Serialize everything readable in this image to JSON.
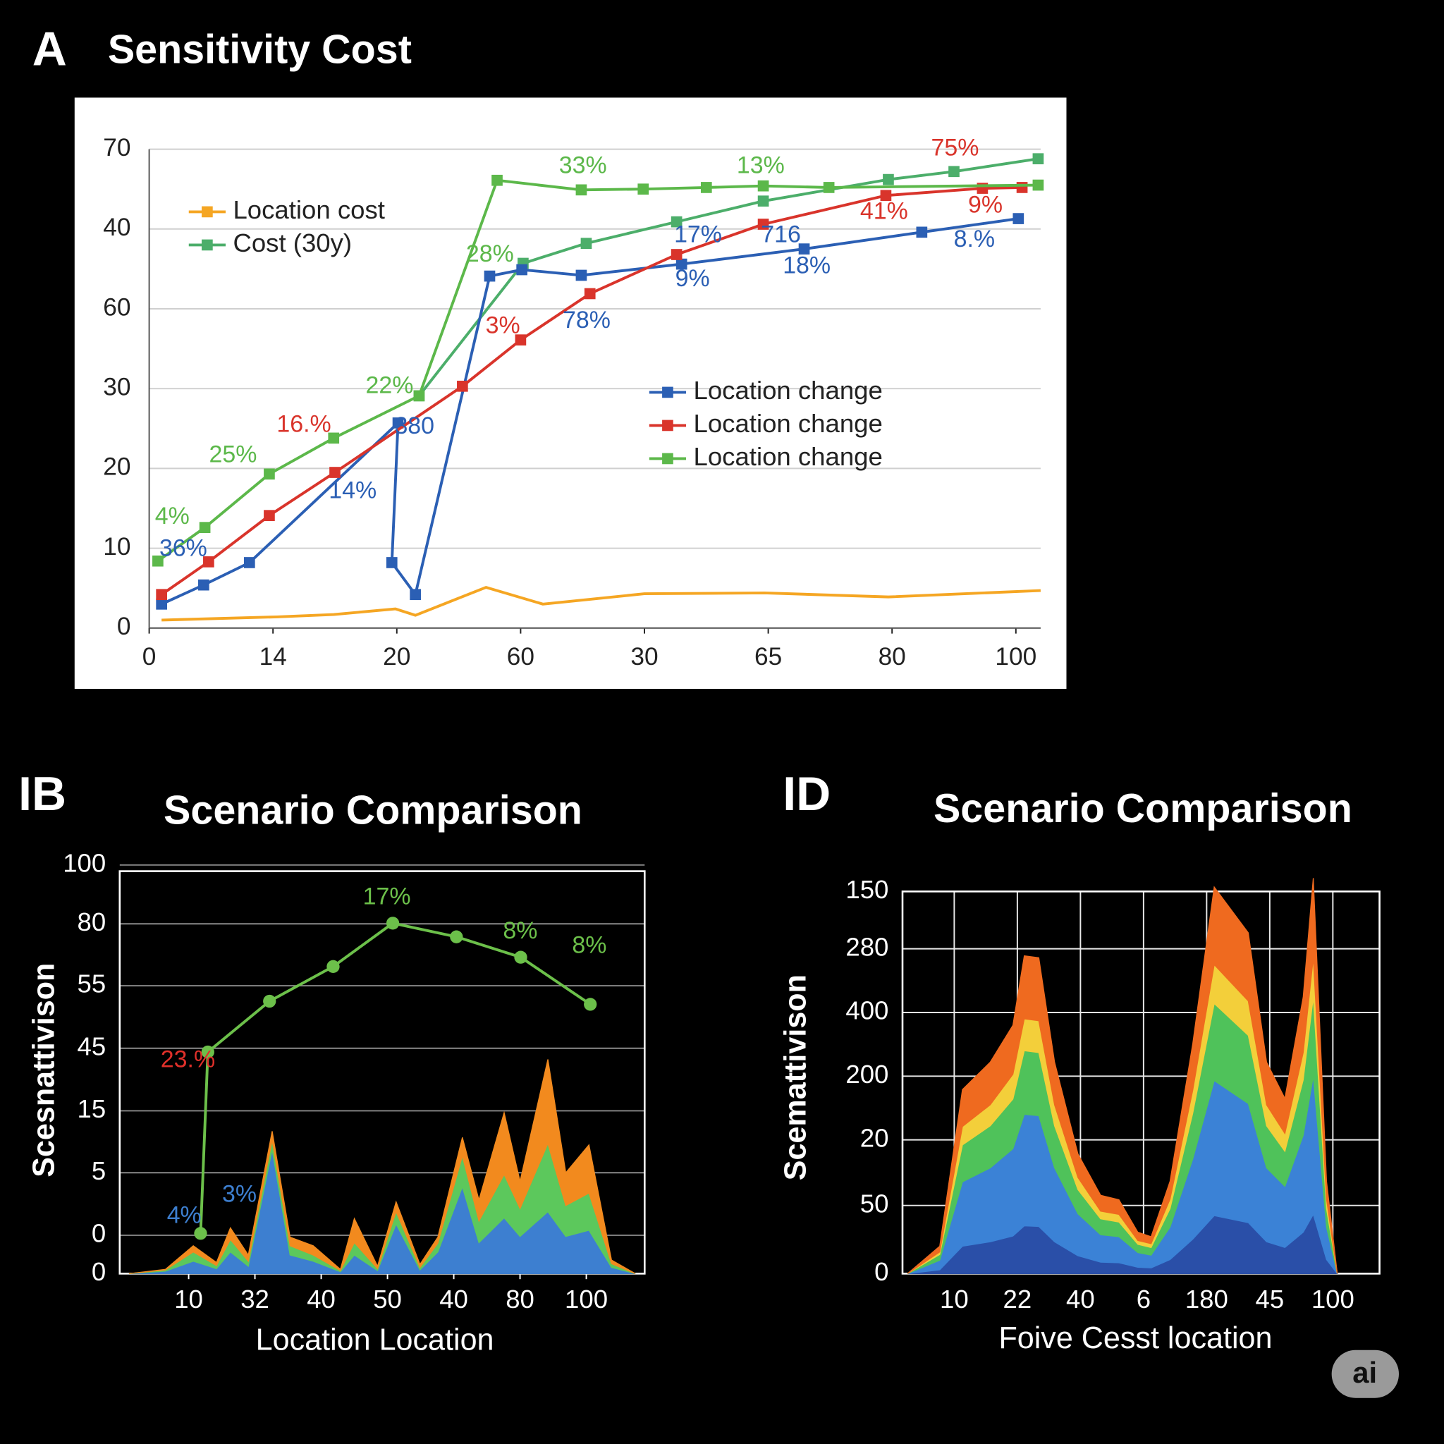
{
  "chart_data": [
    {
      "type": "line",
      "panel_label": "A",
      "title": "Sensitivity Cost",
      "background": "#ffffff",
      "grid": true,
      "xlim": [
        0,
        7.2
      ],
      "ylim": [
        0,
        6
      ],
      "xticks": [
        0,
        {
          "value": 1,
          "label": "14"
        },
        {
          "value": 2,
          "label": "20"
        },
        {
          "value": 3,
          "label": "60"
        },
        {
          "value": 4,
          "label": "30"
        },
        {
          "value": 5,
          "label": "65"
        },
        {
          "value": 6,
          "label": "80"
        },
        {
          "value": 7,
          "label": "100"
        }
      ],
      "yticks": [
        0,
        {
          "value": 1,
          "label": "10"
        },
        {
          "value": 2,
          "label": "20"
        },
        {
          "value": 3,
          "label": "30"
        },
        {
          "value": 4,
          "label": "60"
        },
        {
          "value": 5,
          "label": "40"
        },
        {
          "value": 6,
          "label": "70"
        }
      ],
      "series": [
        {
          "name": "Location cost",
          "color": "#f5a623",
          "legend": "upper left",
          "marker": false,
          "x": [
            0.1,
            1.03,
            1.49,
            1.99,
            2.15,
            2.72,
            3.18,
            4.0,
            4.97,
            5.97,
            7.2
          ],
          "values": [
            0.1,
            0.14,
            0.17,
            0.24,
            0.16,
            0.51,
            0.3,
            0.43,
            0.44,
            0.39,
            0.47
          ]
        },
        {
          "name": "Cost (30y)",
          "color": "#4cae6a",
          "legend": "upper left",
          "marker": true,
          "x": [
            2.18,
            3.02,
            3.53,
            4.26,
            4.96,
            5.97,
            6.5,
            7.18
          ],
          "values": [
            2.91,
            4.57,
            4.82,
            5.09,
            5.35,
            5.62,
            5.72,
            5.88
          ]
        },
        {
          "name": "Location change",
          "color": "#2b5fb4",
          "legend": "center right",
          "marker": true,
          "x": [
            0.1,
            0.44,
            0.81,
            2.01,
            1.96,
            2.15,
            2.75,
            3.01,
            3.49,
            4.3,
            5.29,
            6.24,
            7.02
          ],
          "values": [
            0.3,
            0.54,
            0.82,
            2.57,
            0.82,
            0.42,
            4.41,
            4.49,
            4.42,
            4.56,
            4.75,
            4.96,
            5.13
          ]
        },
        {
          "name": "Location change",
          "color": "#d9342b",
          "legend": "center right",
          "marker": true,
          "x": [
            0.1,
            0.48,
            0.97,
            1.5,
            2.53,
            3.0,
            3.56,
            4.26,
            4.96,
            5.95,
            6.73,
            7.05
          ],
          "values": [
            0.42,
            0.83,
            1.41,
            1.95,
            3.03,
            3.61,
            4.19,
            4.68,
            5.06,
            5.42,
            5.51,
            5.52
          ]
        },
        {
          "name": "Location change",
          "color": "#5cb84a",
          "legend": "center right",
          "marker": true,
          "x": [
            0.07,
            0.45,
            0.97,
            1.49,
            2.18,
            2.81,
            3.49,
            3.99,
            4.5,
            4.96,
            5.49,
            7.18
          ],
          "values": [
            0.84,
            1.26,
            1.93,
            2.38,
            2.91,
            5.61,
            5.49,
            5.5,
            5.52,
            5.54,
            5.52,
            5.55
          ]
        }
      ],
      "annotations": [
        {
          "text": "75%",
          "color": "#d9342b"
        },
        {
          "text": "33%",
          "color": "#5cb84a"
        },
        {
          "text": "13%",
          "color": "#5cb84a"
        },
        {
          "text": "41%",
          "color": "#d9342b"
        },
        {
          "text": "9%",
          "color": "#d9342b"
        },
        {
          "text": "17%",
          "color": "#2b5fb4"
        },
        {
          "text": "716",
          "color": "#2b5fb4"
        },
        {
          "text": "8.%",
          "color": "#2b5fb4"
        },
        {
          "text": "28%",
          "color": "#5cb84a"
        },
        {
          "text": "18%",
          "color": "#2b5fb4"
        },
        {
          "text": "9%",
          "color": "#2b5fb4"
        },
        {
          "text": "3%",
          "color": "#d9342b"
        },
        {
          "text": "78%",
          "color": "#2b5fb4"
        },
        {
          "text": "22%",
          "color": "#5cb84a"
        },
        {
          "text": "16.%",
          "color": "#d9342b"
        },
        {
          "text": "380",
          "color": "#2b5fb4"
        },
        {
          "text": "25%",
          "color": "#5cb84a"
        },
        {
          "text": "14%",
          "color": "#2b5fb4"
        },
        {
          "text": "4%",
          "color": "#5cb84a"
        },
        {
          "text": "36%",
          "color": "#2b5fb4"
        }
      ]
    },
    {
      "type": "area",
      "panel_label": "IB",
      "title": "Scenario Comparison",
      "xlabel": "Location Location",
      "ylabel": "Scesnattivison",
      "grid": true,
      "xlim": [
        -0.04,
        7.88
      ],
      "ylim": [
        0,
        6.5
      ],
      "xticks": [
        {
          "value": 1,
          "label": "10"
        },
        {
          "value": 2,
          "label": "32"
        },
        {
          "value": 3,
          "label": "40"
        },
        {
          "value": 4,
          "label": "50"
        },
        {
          "value": 5,
          "label": "40"
        },
        {
          "value": 6,
          "label": "80"
        },
        {
          "value": 7,
          "label": "100"
        }
      ],
      "yticks": [
        0,
        {
          "value": 0.62,
          "label": "0"
        },
        {
          "value": 1.63,
          "label": "5"
        },
        {
          "value": 2.63,
          "label": "15"
        },
        {
          "value": 3.64,
          "label": "45"
        },
        {
          "value": 4.65,
          "label": "55"
        },
        {
          "value": 5.65,
          "label": "80"
        },
        {
          "value": 6.6,
          "label": "100"
        }
      ],
      "x": [
        0.1,
        0.65,
        1.07,
        1.42,
        1.63,
        1.9,
        2.26,
        2.53,
        2.88,
        3.29,
        3.5,
        3.85,
        4.13,
        4.49,
        4.76,
        5.13,
        5.38,
        5.76,
        6.0,
        6.42,
        6.69,
        7.04,
        7.38,
        7.74
      ],
      "series": [
        {
          "type": "area",
          "color": "#3d7fd0",
          "values": [
            0,
            0.04,
            0.2,
            0.08,
            0.35,
            0.12,
            2.0,
            0.3,
            0.2,
            0.03,
            0.3,
            0.05,
            0.8,
            0.06,
            0.35,
            1.4,
            0.5,
            0.9,
            0.6,
            1.0,
            0.6,
            0.7,
            0.1,
            0
          ]
        },
        {
          "type": "area",
          "color": "#5cc85c",
          "values": [
            0,
            0.02,
            0.15,
            0.05,
            0.2,
            0.08,
            0.15,
            0.15,
            0.1,
            0.02,
            0.2,
            0.03,
            0.2,
            0.04,
            0.14,
            0.5,
            0.35,
            0.7,
            0.45,
            1.1,
            0.5,
            0.6,
            0.06,
            0
          ]
        },
        {
          "type": "area",
          "color": "#f28a1e",
          "values": [
            0,
            0.01,
            0.1,
            0.05,
            0.19,
            0.1,
            0.15,
            0.14,
            0.15,
            0.02,
            0.39,
            0.04,
            0.16,
            0.05,
            0.1,
            0.3,
            0.34,
            1.0,
            0.44,
            1.36,
            0.53,
            0.78,
            0.06,
            0
          ]
        },
        {
          "type": "line",
          "color": "#6cc04a",
          "marker": true,
          "x": [
            1.18,
            1.29,
            2.22,
            3.18,
            4.08,
            5.04,
            6.01,
            7.06
          ],
          "values": [
            0.65,
            3.58,
            4.4,
            4.96,
            5.66,
            5.44,
            5.11,
            4.35
          ]
        }
      ],
      "annotations": [
        {
          "text": "17%",
          "color": "#6cc04a"
        },
        {
          "text": "8%",
          "color": "#6cc04a"
        },
        {
          "text": "8%",
          "color": "#6cc04a"
        },
        {
          "text": "23.%",
          "color": "#e0302a"
        },
        {
          "text": "4%",
          "color": "#3d7fd0"
        },
        {
          "text": "3%",
          "color": "#3d7fd0"
        }
      ]
    },
    {
      "type": "area",
      "panel_label": "ID",
      "title": "Scenario Comparison",
      "xlabel": "Foive Cesst location",
      "ylabel": "Scemattivison",
      "grid": true,
      "xgrid": true,
      "xlim": [
        0.18,
        7.74
      ],
      "ylim": [
        0,
        6
      ],
      "xticks": [
        {
          "value": 1,
          "label": "10"
        },
        {
          "value": 2,
          "label": "22"
        },
        {
          "value": 3,
          "label": "40"
        },
        {
          "value": 4,
          "label": "6"
        },
        {
          "value": 5,
          "label": "180"
        },
        {
          "value": 6,
          "label": "45"
        },
        {
          "value": 7,
          "label": "100"
        }
      ],
      "yticks": [
        0,
        {
          "value": 1.07,
          "label": "50"
        },
        {
          "value": 2.1,
          "label": "20"
        },
        {
          "value": 3.1,
          "label": "200"
        },
        {
          "value": 4.1,
          "label": "400"
        },
        {
          "value": 5.1,
          "label": "280"
        },
        {
          "value": 6,
          "label": "150"
        }
      ],
      "x": [
        0.26,
        0.77,
        1.13,
        1.57,
        1.93,
        2.11,
        2.34,
        2.59,
        2.96,
        3.32,
        3.61,
        3.91,
        4.12,
        4.42,
        4.78,
        5.12,
        5.66,
        5.95,
        6.24,
        6.53,
        6.69,
        6.9,
        7.07
      ],
      "series": [
        {
          "type": "area",
          "color": "#2a4fa8",
          "values": [
            0,
            0.06,
            0.43,
            0.5,
            0.59,
            0.75,
            0.74,
            0.5,
            0.28,
            0.18,
            0.17,
            0.1,
            0.09,
            0.22,
            0.54,
            0.91,
            0.8,
            0.5,
            0.41,
            0.65,
            0.93,
            0.22,
            0
          ]
        },
        {
          "type": "area",
          "color": "#3b82d6",
          "values": [
            0,
            0.15,
            1.01,
            1.16,
            1.37,
            1.75,
            1.74,
            1.16,
            0.66,
            0.43,
            0.41,
            0.23,
            0.2,
            0.51,
            1.26,
            2.12,
            1.87,
            1.16,
            0.96,
            1.52,
            2.17,
            0.51,
            0
          ]
        },
        {
          "type": "area",
          "color": "#4fc25a",
          "values": [
            0,
            0.09,
            0.58,
            0.66,
            0.78,
            1.0,
            0.99,
            0.66,
            0.38,
            0.25,
            0.23,
            0.13,
            0.12,
            0.29,
            0.72,
            1.21,
            1.07,
            0.66,
            0.55,
            0.87,
            1.24,
            0.29,
            0
          ]
        },
        {
          "type": "area",
          "color": "#f3cf3a",
          "values": [
            0,
            0.04,
            0.29,
            0.33,
            0.39,
            0.5,
            0.5,
            0.33,
            0.19,
            0.12,
            0.12,
            0.06,
            0.06,
            0.15,
            0.36,
            0.61,
            0.54,
            0.33,
            0.28,
            0.43,
            0.62,
            0.15,
            0
          ]
        },
        {
          "type": "area",
          "color": "#ef6a1f",
          "values": [
            0,
            0.09,
            0.58,
            0.67,
            0.77,
            0.99,
            0.99,
            0.67,
            0.37,
            0.25,
            0.23,
            0.13,
            0.11,
            0.28,
            0.73,
            1.22,
            1.07,
            0.67,
            0.55,
            0.87,
            1.25,
            0.28,
            0
          ]
        }
      ]
    }
  ],
  "badge": "ai"
}
